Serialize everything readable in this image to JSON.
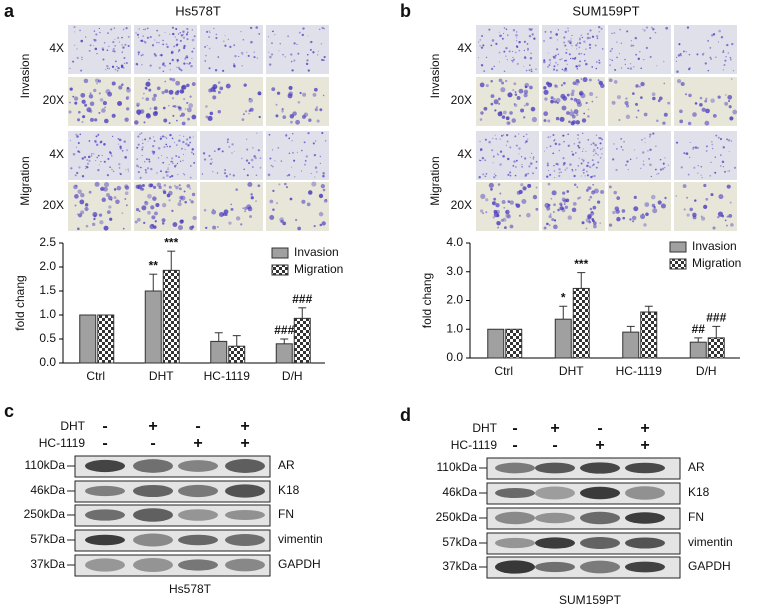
{
  "panels": {
    "a": {
      "label": "a",
      "title": "Hs578T",
      "row_labels": [
        "4X",
        "20X",
        "4X",
        "20X"
      ],
      "group_labels": [
        "Invasion",
        "Migration"
      ]
    },
    "b": {
      "label": "b",
      "title": "SUM159PT",
      "row_labels": [
        "4X",
        "20X",
        "4X",
        "20X"
      ],
      "group_labels": [
        "Invasion",
        "Migration"
      ]
    },
    "c": {
      "label": "c",
      "treatments": [
        {
          "name": "DHT",
          "signs": [
            "-",
            "+",
            "-",
            "+"
          ]
        },
        {
          "name": "HC-1119",
          "signs": [
            "-",
            "-",
            "+",
            "+"
          ]
        }
      ],
      "markers": [
        "110kDa",
        "46kDa",
        "250kDa",
        "57kDa",
        "37kDa"
      ],
      "proteins": [
        "AR",
        "K18",
        "FN",
        "vimentin",
        "GAPDH"
      ],
      "cell_line": "Hs578T"
    },
    "d": {
      "label": "d",
      "treatments": [
        {
          "name": "DHT",
          "signs": [
            "-",
            "+",
            "-",
            "+"
          ]
        },
        {
          "name": "HC-1119",
          "signs": [
            "-",
            "-",
            "+",
            "+"
          ]
        }
      ],
      "markers": [
        "110kDa",
        "46kDa",
        "250kDa",
        "57kDa",
        "37kDa"
      ],
      "proteins": [
        "AR",
        "K18",
        "FN",
        "vimentin",
        "GAPDH"
      ],
      "cell_line": "SUM159PT"
    }
  },
  "chart_data": [
    {
      "type": "bar",
      "y_label": "fold chang",
      "categories": [
        "Ctrl",
        "DHT",
        "HC-1119",
        "D/H"
      ],
      "series": [
        {
          "name": "Invasion",
          "color": "#a0a0a0",
          "values": [
            1.0,
            1.5,
            0.45,
            0.4
          ],
          "errors": [
            0,
            0.35,
            0.18,
            0.1
          ],
          "annotations": [
            null,
            "**",
            null,
            "###"
          ]
        },
        {
          "name": "Migration",
          "color": "checker",
          "values": [
            1.0,
            1.93,
            0.35,
            0.93
          ],
          "errors": [
            0,
            0.4,
            0.22,
            0.22
          ],
          "annotations": [
            null,
            "***",
            null,
            "###"
          ]
        }
      ],
      "ylim": [
        0,
        2.5
      ],
      "yticks": [
        {
          "value": 0,
          "label": "0.0"
        },
        0.5,
        {
          "value": 1,
          "label": "1.0"
        },
        1.5,
        {
          "value": 2,
          "label": "2.0"
        },
        2.5
      ]
    },
    {
      "type": "bar",
      "y_label": "fold chang",
      "categories": [
        "Ctrl",
        "DHT",
        "HC-1119",
        "D/H"
      ],
      "series": [
        {
          "name": "Invasion",
          "color": "#a0a0a0",
          "values": [
            1.0,
            1.35,
            0.9,
            0.55
          ],
          "errors": [
            0,
            0.45,
            0.2,
            0.15
          ],
          "annotations": [
            null,
            "*",
            null,
            "##"
          ]
        },
        {
          "name": "Migration",
          "color": "checker",
          "values": [
            1.0,
            2.42,
            1.6,
            0.7
          ],
          "errors": [
            0,
            0.55,
            0.2,
            0.4
          ],
          "annotations": [
            null,
            "***",
            null,
            "###"
          ]
        }
      ],
      "ylim": [
        0,
        4
      ],
      "yticks": [
        {
          "value": 0,
          "label": "0.0"
        },
        {
          "value": 1,
          "label": "1.0"
        },
        {
          "value": 2,
          "label": "2.0"
        },
        {
          "value": 3,
          "label": "3.0"
        },
        {
          "value": 4,
          "label": "4.0"
        }
      ]
    }
  ]
}
